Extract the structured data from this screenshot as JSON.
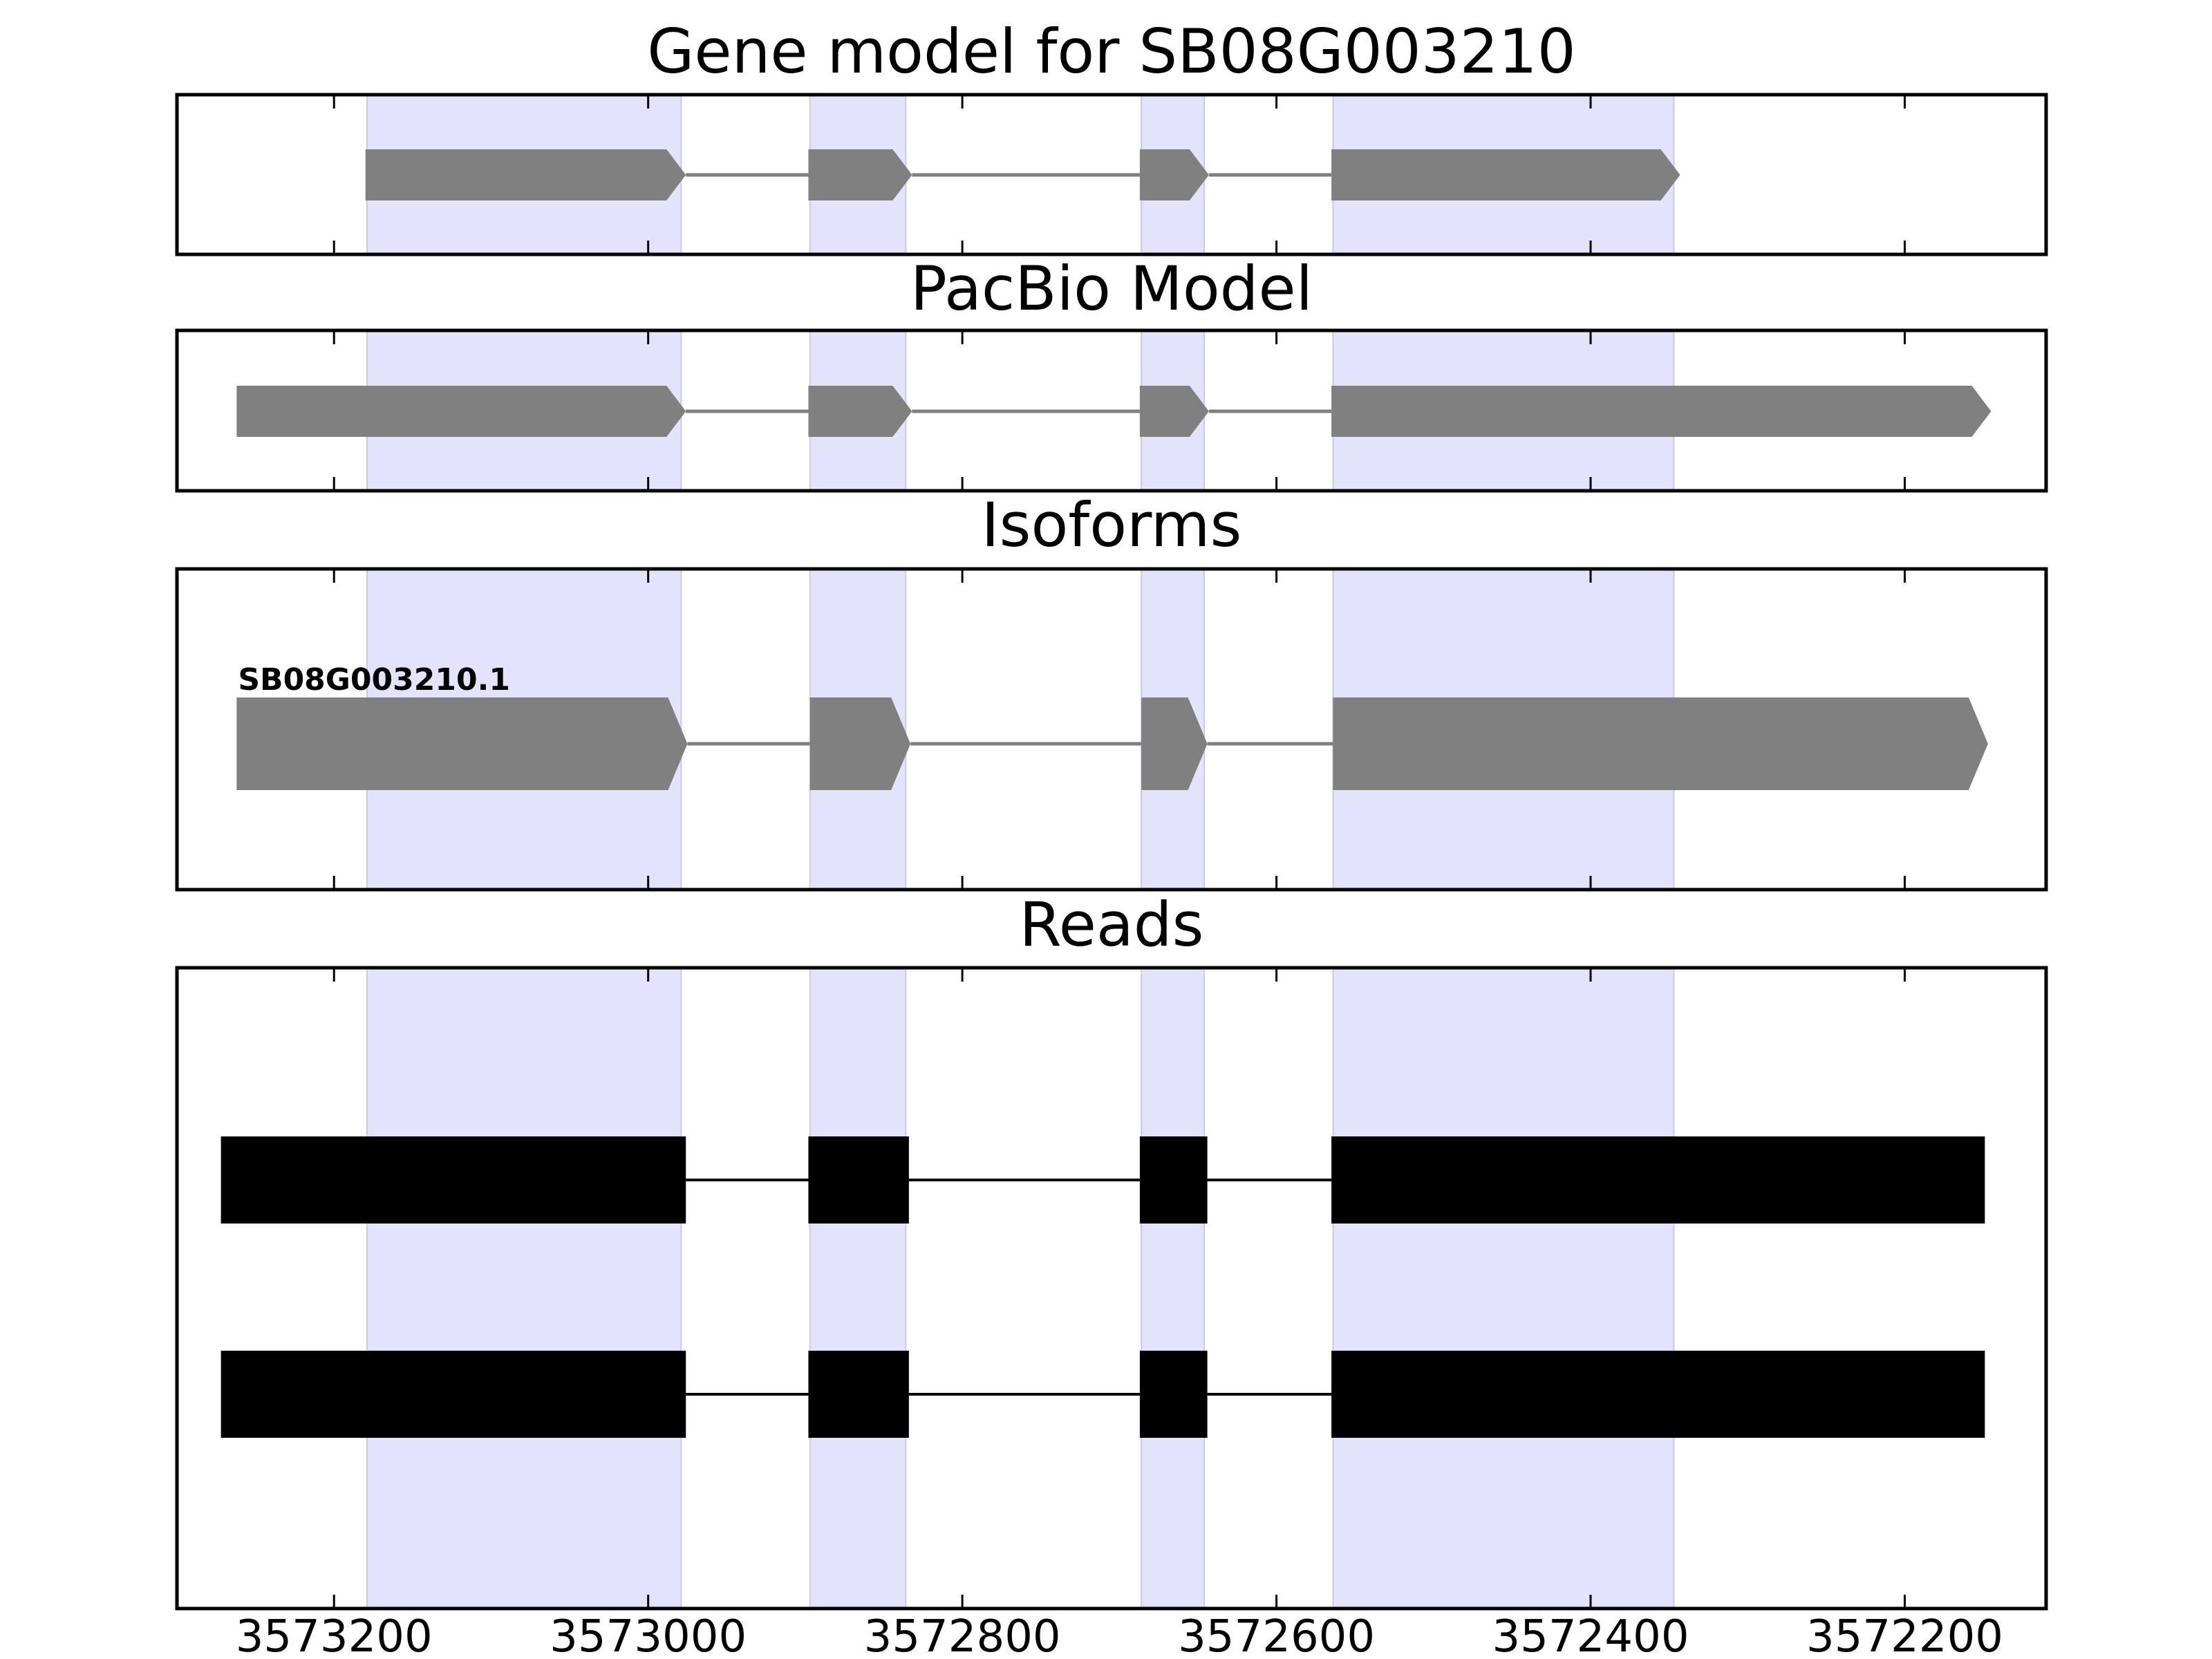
{
  "chart_data": {
    "type": "gene_structure",
    "x_axis": {
      "ticks": [
        3573200,
        3573000,
        3572800,
        3572600,
        3572400,
        3572200
      ],
      "tick_labels": [
        "3573200",
        "3573000",
        "3572800",
        "3572600",
        "3572400",
        "3572200"
      ],
      "reversed": true,
      "xlim": [
        3573300,
        3572110
      ]
    },
    "highlight_color": "#e3e3fc",
    "highlight_regions": [
      [
        3573179,
        3572979
      ],
      [
        3572897,
        3572836
      ],
      [
        3572686,
        3572646
      ],
      [
        3572564,
        3572347
      ]
    ],
    "panels": [
      {
        "title": "Gene model for SB08G003210",
        "color": "#808080",
        "tracks": [
          {
            "label": "",
            "exons": [
              [
                3573180,
                3572976
              ],
              [
                3572898,
                3572832
              ],
              [
                3572687,
                3572643
              ],
              [
                3572565,
                3572343
              ]
            ]
          }
        ]
      },
      {
        "title": "PacBio Model",
        "color": "#808080",
        "tracks": [
          {
            "label": "",
            "exons": [
              [
                3573262,
                3572976
              ],
              [
                3572898,
                3572832
              ],
              [
                3572687,
                3572643
              ],
              [
                3572565,
                3572145
              ]
            ]
          }
        ]
      },
      {
        "title": "Isoforms",
        "color": "#808080",
        "tracks": [
          {
            "label": "SB08G003210.1",
            "exons": [
              [
                3573262,
                3572975
              ],
              [
                3572897,
                3572833
              ],
              [
                3572686,
                3572644
              ],
              [
                3572564,
                3572147
              ]
            ]
          }
        ]
      },
      {
        "title": "Reads",
        "color": "#000000",
        "tracks": [
          {
            "label": "",
            "exons": [
              [
                3573272,
                3572976
              ],
              [
                3572898,
                3572834
              ],
              [
                3572687,
                3572644
              ],
              [
                3572565,
                3572149
              ]
            ]
          },
          {
            "label": "",
            "exons": [
              [
                3573272,
                3572976
              ],
              [
                3572898,
                3572834
              ],
              [
                3572687,
                3572644
              ],
              [
                3572565,
                3572149
              ]
            ]
          }
        ]
      }
    ]
  }
}
